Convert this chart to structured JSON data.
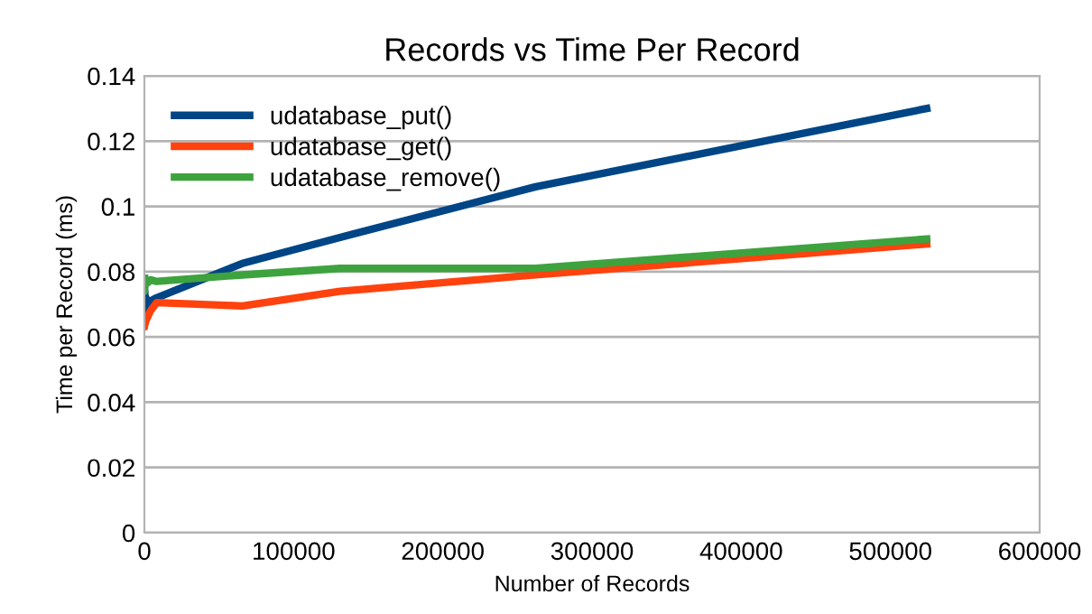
{
  "chart_data": {
    "type": "line",
    "title": "Records vs Time Per Record",
    "xlabel": "Number of Records",
    "ylabel": "Time per Record (ms)",
    "x": [
      16,
      32,
      64,
      128,
      256,
      512,
      1024,
      2048,
      4096,
      8192,
      65536,
      131072,
      262144,
      524288
    ],
    "series": [
      {
        "name": "udatabase_put()",
        "color": "#004586",
        "values": [
          0.078,
          0.067,
          0.077,
          0.066,
          0.074,
          0.068,
          0.072,
          0.069,
          0.071,
          0.072,
          0.0825,
          0.0905,
          0.106,
          0.13
        ]
      },
      {
        "name": "udatabase_get()",
        "color": "#ff420e",
        "values": [
          0.064,
          0.063,
          0.065,
          0.064,
          0.065,
          0.064,
          0.065,
          0.066,
          0.068,
          0.0705,
          0.0695,
          0.074,
          0.079,
          0.0885
        ]
      },
      {
        "name": "udatabase_remove()",
        "color": "#3ea33e",
        "values": [
          0.078,
          0.074,
          0.077,
          0.075,
          0.077,
          0.076,
          0.077,
          0.0765,
          0.0775,
          0.077,
          0.079,
          0.081,
          0.081,
          0.09
        ]
      }
    ],
    "xlim": [
      0,
      600000
    ],
    "xticks": [
      0,
      100000,
      200000,
      300000,
      400000,
      500000,
      600000
    ],
    "ylim": [
      0,
      0.14
    ],
    "yticks": [
      0,
      0.02,
      0.04,
      0.06,
      0.08,
      {
        "value": 0.1,
        "label": "0.1"
      },
      0.12,
      0.14
    ],
    "grid": "y",
    "legend": "top left"
  }
}
